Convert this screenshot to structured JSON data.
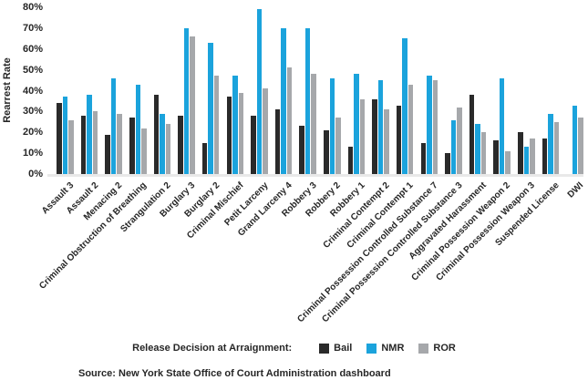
{
  "source": "Source: New York State Office of Court Administration dashboard",
  "chart_data": {
    "type": "bar",
    "title": "",
    "xlabel": "",
    "ylabel": "Rearrest Rate",
    "ylim": [
      0,
      80
    ],
    "ytick_step": 10,
    "yticks": [
      "0%",
      "10%",
      "20%",
      "30%",
      "40%",
      "50%",
      "60%",
      "70%",
      "80%"
    ],
    "grid": false,
    "legend_title": "Release Decision at Arraignment:",
    "legend_position": "bottom",
    "categories": [
      "Assault 3",
      "Assault 2",
      "Menacing 2",
      "Criminal Obstruction of Breathing",
      "Strangulation 2",
      "Burglary 3",
      "Burglary 2",
      "Criminal Mischief",
      "Petit Larceny",
      "Grand Larceny 4",
      "Robbery 3",
      "Robbery 2",
      "Robbery 1",
      "Criminal Contempt 2",
      "Criminal Contempt 1",
      "Criminal Possession Controlled Substance 7",
      "Criminal Possession Controlled Substance 3",
      "Aggravated Harassment",
      "Criminal Possession Weapon 2",
      "Criminal Possession Weapon 3",
      "Suspended License",
      "DWI"
    ],
    "series": [
      {
        "name": "Bail",
        "color": "#2a2a2a",
        "values": [
          34,
          28,
          19,
          27,
          38,
          28,
          15,
          37,
          28,
          31,
          23,
          21,
          13,
          36,
          33,
          15,
          10,
          38,
          16,
          20,
          17,
          null
        ]
      },
      {
        "name": "NMR",
        "color": "#1ba3dc",
        "values": [
          37,
          38,
          46,
          43,
          29,
          70,
          63,
          47,
          79,
          70,
          70,
          46,
          48,
          45,
          65,
          47,
          26,
          24,
          46,
          13,
          29,
          33
        ]
      },
      {
        "name": "ROR",
        "color": "#a6a8ab",
        "values": [
          26,
          30,
          29,
          22,
          24,
          66,
          47,
          39,
          41,
          51,
          48,
          27,
          36,
          31,
          43,
          45,
          32,
          20,
          11,
          17,
          25,
          27
        ]
      }
    ]
  }
}
